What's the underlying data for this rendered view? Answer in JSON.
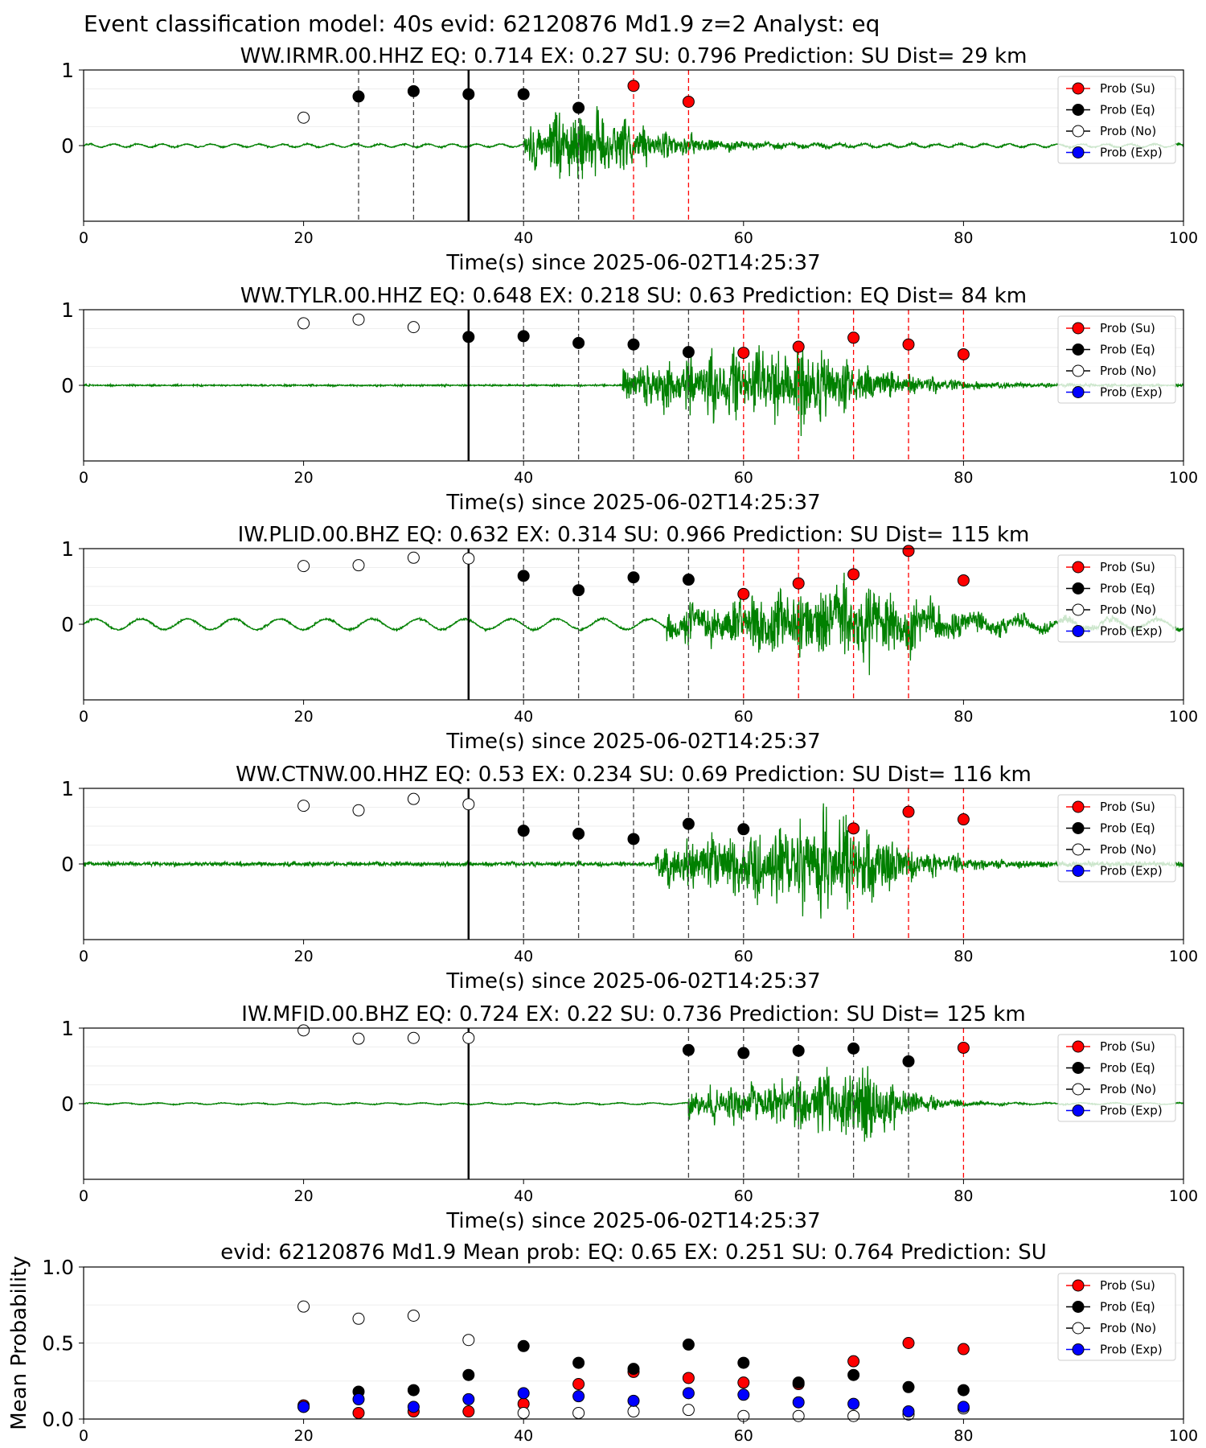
{
  "figure_title": "Event classification model: 40s evid: 62120876 Md1.9 z=2 Analyst: eq",
  "legend": [
    "Prob (Su)",
    "Prob (Eq)",
    "Prob (No)",
    "Prob (Exp)"
  ],
  "colors": {
    "su": "#ff0000",
    "eq": "#000000",
    "no": "#ffffff",
    "exp": "#0000ff",
    "waveform": "#008000",
    "eq_line": "#444444",
    "su_line": "#ff0000"
  },
  "chart_data": [
    {
      "type": "scatter",
      "title": "WW.IRMR.00.HHZ   EQ: 0.714  EX: 0.27  SU: 0.796   Prediction: SU    Dist= 29 km",
      "xlabel": "Time(s) since 2025-06-02T14:25:37",
      "ylabel": "",
      "xlim": [
        0,
        100
      ],
      "x_ticks": [
        "0",
        "20",
        "40",
        "60",
        "80",
        "100"
      ],
      "y_ticks": [
        "0",
        "1"
      ],
      "pick_time": 35,
      "waveform": {
        "onset": 40,
        "decay_end": 65,
        "peak_time": 45,
        "peak_amp": 0.9,
        "noise_amp": 0.015,
        "osc_amp": 0.02,
        "osc_period": 2.2
      },
      "series": [
        {
          "name": "Prob (Su)",
          "x": [
            50,
            55
          ],
          "values": [
            0.79,
            0.58
          ]
        },
        {
          "name": "Prob (Eq)",
          "x": [
            25,
            30,
            35,
            40,
            45
          ],
          "values": [
            0.65,
            0.72,
            0.68,
            0.68,
            0.5
          ]
        },
        {
          "name": "Prob (No)",
          "x": [
            20
          ],
          "values": [
            0.37
          ]
        },
        {
          "name": "Prob (Exp)",
          "x": [],
          "values": []
        }
      ],
      "eq_lines": [
        25,
        30,
        40,
        45
      ],
      "su_lines": [
        50,
        55
      ]
    },
    {
      "type": "scatter",
      "title": "WW.TYLR.00.HHZ   EQ: 0.648  EX: 0.218  SU: 0.63   Prediction: EQ    Dist= 84 km",
      "xlabel": "Time(s) since 2025-06-02T14:25:37",
      "ylabel": "",
      "xlim": [
        0,
        100
      ],
      "x_ticks": [
        "0",
        "20",
        "40",
        "60",
        "80",
        "100"
      ],
      "y_ticks": [
        "0",
        "1"
      ],
      "pick_time": 35,
      "waveform": {
        "onset": 49,
        "decay_end": 85,
        "peak_time": 66,
        "peak_amp": 0.9,
        "noise_amp": 0.018,
        "osc_amp": 0.0,
        "osc_period": 3
      },
      "series": [
        {
          "name": "Prob (Su)",
          "x": [
            60,
            65,
            70,
            75,
            80
          ],
          "values": [
            0.43,
            0.51,
            0.63,
            0.54,
            0.41
          ]
        },
        {
          "name": "Prob (Eq)",
          "x": [
            35,
            40,
            45,
            50,
            55
          ],
          "values": [
            0.64,
            0.65,
            0.56,
            0.54,
            0.44
          ]
        },
        {
          "name": "Prob (No)",
          "x": [
            20,
            25,
            30
          ],
          "values": [
            0.82,
            0.87,
            0.77
          ]
        },
        {
          "name": "Prob (Exp)",
          "x": [],
          "values": []
        }
      ],
      "eq_lines": [
        40,
        45,
        50,
        55
      ],
      "su_lines": [
        60,
        65,
        70,
        75,
        80
      ]
    },
    {
      "type": "scatter",
      "title": "IW.PLID.00.BHZ   EQ: 0.632  EX: 0.314  SU: 0.966   Prediction: SU    Dist= 115 km",
      "xlabel": "Time(s) since 2025-06-02T14:25:37",
      "ylabel": "",
      "xlim": [
        0,
        100
      ],
      "x_ticks": [
        "0",
        "20",
        "40",
        "60",
        "80",
        "100"
      ],
      "y_ticks": [
        "0",
        "1"
      ],
      "pick_time": 35,
      "waveform": {
        "onset": 53,
        "decay_end": 95,
        "peak_time": 71,
        "peak_amp": 0.85,
        "noise_amp": 0.02,
        "osc_amp": 0.07,
        "osc_period": 4.2
      },
      "series": [
        {
          "name": "Prob (Su)",
          "x": [
            60,
            65,
            70,
            75,
            80
          ],
          "values": [
            0.4,
            0.54,
            0.66,
            0.97,
            0.58
          ]
        },
        {
          "name": "Prob (Eq)",
          "x": [
            40,
            45,
            50,
            55
          ],
          "values": [
            0.64,
            0.45,
            0.62,
            0.59
          ]
        },
        {
          "name": "Prob (No)",
          "x": [
            20,
            25,
            30,
            35
          ],
          "values": [
            0.77,
            0.78,
            0.88,
            0.87
          ]
        },
        {
          "name": "Prob (Exp)",
          "x": [],
          "values": []
        }
      ],
      "eq_lines": [
        40,
        45,
        50,
        55
      ],
      "su_lines": [
        60,
        65,
        70,
        75
      ]
    },
    {
      "type": "scatter",
      "title": "WW.CTNW.00.HHZ   EQ: 0.53  EX: 0.234  SU: 0.69   Prediction: SU    Dist= 116 km",
      "xlabel": "Time(s) since 2025-06-02T14:25:37",
      "ylabel": "",
      "xlim": [
        0,
        100
      ],
      "x_ticks": [
        "0",
        "20",
        "40",
        "60",
        "80",
        "100"
      ],
      "y_ticks": [
        "0",
        "1"
      ],
      "pick_time": 35,
      "waveform": {
        "onset": 52,
        "decay_end": 85,
        "peak_time": 70,
        "peak_amp": 0.95,
        "noise_amp": 0.045,
        "osc_amp": 0.0,
        "osc_period": 3
      },
      "series": [
        {
          "name": "Prob (Su)",
          "x": [
            70,
            75,
            80
          ],
          "values": [
            0.47,
            0.69,
            0.59
          ]
        },
        {
          "name": "Prob (Eq)",
          "x": [
            40,
            45,
            50,
            55,
            60
          ],
          "values": [
            0.44,
            0.4,
            0.33,
            0.53,
            0.46
          ]
        },
        {
          "name": "Prob (No)",
          "x": [
            20,
            25,
            30,
            35
          ],
          "values": [
            0.77,
            0.71,
            0.86,
            0.79
          ]
        },
        {
          "name": "Prob (Exp)",
          "x": [],
          "values": []
        }
      ],
      "eq_lines": [
        40,
        45,
        50,
        55,
        60
      ],
      "su_lines": [
        70,
        75,
        80
      ]
    },
    {
      "type": "scatter",
      "title": "IW.MFID.00.BHZ   EQ: 0.724  EX: 0.22  SU: 0.736   Prediction: SU    Dist= 125 km",
      "xlabel": "Time(s) since 2025-06-02T14:25:37",
      "ylabel": "",
      "xlim": [
        0,
        100
      ],
      "x_ticks": [
        "0",
        "20",
        "40",
        "60",
        "80",
        "100"
      ],
      "y_ticks": [
        "0",
        "1"
      ],
      "pick_time": 35,
      "waveform": {
        "onset": 55,
        "decay_end": 82,
        "peak_time": 72,
        "peak_amp": 0.75,
        "noise_amp": 0.01,
        "osc_amp": 0.01,
        "osc_period": 3
      },
      "series": [
        {
          "name": "Prob (Su)",
          "x": [
            80
          ],
          "values": [
            0.74
          ]
        },
        {
          "name": "Prob (Eq)",
          "x": [
            55,
            60,
            65,
            70,
            75
          ],
          "values": [
            0.71,
            0.67,
            0.7,
            0.73,
            0.56
          ]
        },
        {
          "name": "Prob (No)",
          "x": [
            20,
            25,
            30,
            35
          ],
          "values": [
            0.97,
            0.86,
            0.87,
            0.87
          ]
        },
        {
          "name": "Prob (Exp)",
          "x": [],
          "values": []
        }
      ],
      "eq_lines": [
        55,
        60,
        65,
        70,
        75
      ],
      "su_lines": [
        80
      ]
    },
    {
      "type": "scatter",
      "title": "evid: 62120876   Md1.9   Mean prob:    EQ: 0.65   EX: 0.251   SU: 0.764   Prediction: SU",
      "xlabel": "",
      "ylabel": "Mean Probability",
      "xlim": [
        0,
        100
      ],
      "ylim": [
        0,
        1
      ],
      "x_ticks": [
        "0",
        "20",
        "40",
        "60",
        "80",
        "100"
      ],
      "y_ticks": [
        "0.0",
        "0.5",
        "1.0"
      ],
      "grid": true,
      "series": [
        {
          "name": "Prob (Su)",
          "x": [
            20,
            25,
            30,
            35,
            40,
            45,
            50,
            55,
            60,
            65,
            70,
            75,
            80
          ],
          "values": [
            0.09,
            0.04,
            0.05,
            0.05,
            0.1,
            0.23,
            0.31,
            0.27,
            0.24,
            0.23,
            0.38,
            0.5,
            0.46
          ]
        },
        {
          "name": "Prob (Eq)",
          "x": [
            20,
            25,
            30,
            35,
            40,
            45,
            50,
            55,
            60,
            65,
            70,
            75,
            80
          ],
          "values": [
            0.08,
            0.18,
            0.19,
            0.29,
            0.48,
            0.37,
            0.33,
            0.49,
            0.37,
            0.24,
            0.29,
            0.21,
            0.19
          ]
        },
        {
          "name": "Prob (No)",
          "x": [
            20,
            25,
            30,
            35,
            40,
            45,
            50,
            55,
            60,
            65,
            70,
            75,
            80
          ],
          "values": [
            0.74,
            0.66,
            0.68,
            0.52,
            0.04,
            0.04,
            0.05,
            0.06,
            0.02,
            0.02,
            0.02,
            0.03,
            0.07
          ]
        },
        {
          "name": "Prob (Exp)",
          "x": [
            20,
            25,
            30,
            35,
            40,
            45,
            50,
            55,
            60,
            65,
            70,
            75,
            80
          ],
          "values": [
            0.08,
            0.13,
            0.08,
            0.13,
            0.17,
            0.15,
            0.12,
            0.17,
            0.16,
            0.11,
            0.1,
            0.05,
            0.08
          ]
        }
      ]
    }
  ]
}
